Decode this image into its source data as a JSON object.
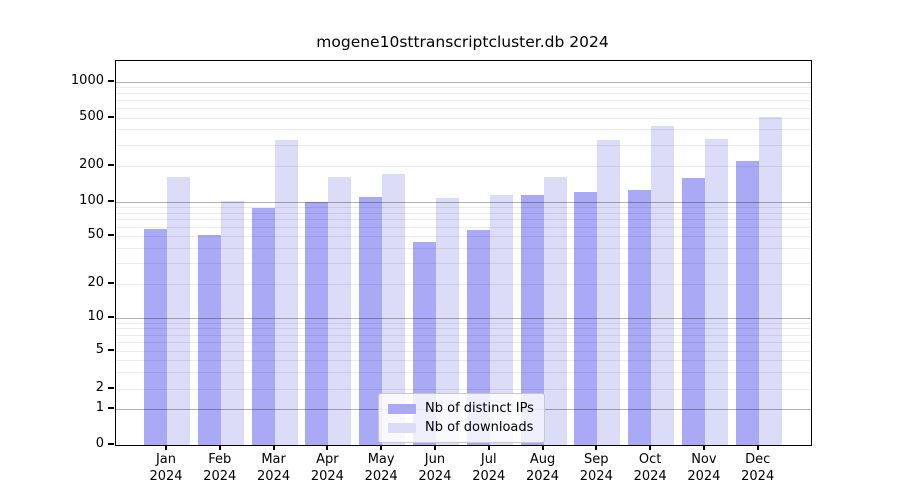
{
  "chart_data": {
    "type": "bar",
    "title": "mogene10sttranscriptcluster.db 2024",
    "categories": [
      "Jan",
      "Feb",
      "Mar",
      "Apr",
      "May",
      "Jun",
      "Jul",
      "Aug",
      "Sep",
      "Oct",
      "Nov",
      "Dec"
    ],
    "year": "2024",
    "series": [
      {
        "name": "Nb of distinct IPs",
        "color": "#a9a9f6",
        "values": [
          58,
          51,
          88,
          100,
          110,
          45,
          57,
          114,
          121,
          125,
          157,
          220
        ]
      },
      {
        "name": "Nb of downloads",
        "color": "#dcdcf8",
        "values": [
          160,
          101,
          330,
          163,
          170,
          107,
          113,
          163,
          330,
          425,
          335,
          505
        ]
      }
    ],
    "yticks": [
      0,
      1,
      2,
      5,
      10,
      20,
      50,
      100,
      200,
      500,
      1000
    ],
    "ylim": [
      0,
      1500
    ],
    "yscale": "symlog",
    "grid": true,
    "legend_position": "bottom-center"
  },
  "colors": {
    "bar_dark": "#a9a9f6",
    "bar_light": "#dcdcf8",
    "grid_major": "#b3b3b3",
    "grid_minor": "#ebebeb",
    "axis": "#000000",
    "background": "#ffffff"
  }
}
